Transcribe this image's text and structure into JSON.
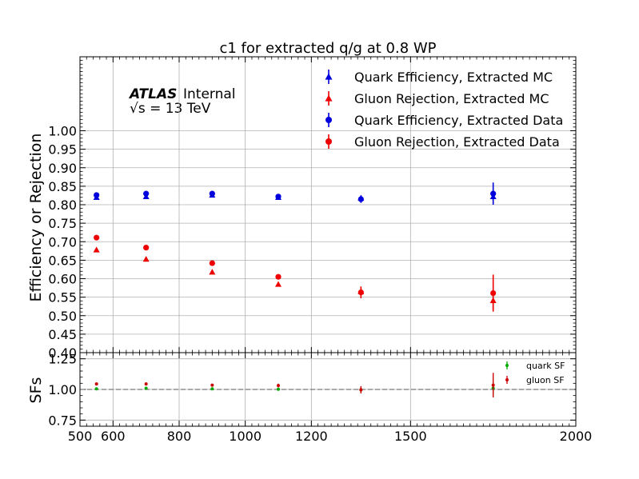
{
  "chart_data": {
    "type": "scatter",
    "title": "c1 for extracted q/g at 0.8 WP",
    "atlas_label": "ATLAS",
    "atlas_sub": "Internal",
    "energy_label": "√s = 13 TeV",
    "x": [
      550,
      700,
      900,
      1100,
      1350,
      1750
    ],
    "xlim": [
      500,
      2000
    ],
    "x_ticks": [
      500,
      600,
      800,
      1000,
      1200,
      1500,
      2000
    ],
    "top": {
      "ylabel": "Efficiency or Rejection",
      "ylim": [
        0.4,
        1.0
      ],
      "display_top": 1.2,
      "y_ticks": [
        0.4,
        0.45,
        0.5,
        0.55,
        0.6,
        0.65,
        0.7,
        0.75,
        0.8,
        0.85,
        0.9,
        0.95,
        1.0
      ],
      "legend_position": "top-right",
      "series": [
        {
          "name": "Quark Efficiency, Extracted MC",
          "marker": "triangle",
          "color": "#0000dd",
          "values": [
            0.82,
            0.822,
            0.826,
            0.82,
            0.818,
            0.822
          ],
          "errors": [
            0.004,
            0.004,
            0.004,
            0.004,
            0.006,
            0.01
          ]
        },
        {
          "name": "Gluon Rejection, Extracted MC",
          "marker": "triangle",
          "color": "#ee0000",
          "values": [
            0.678,
            0.653,
            0.618,
            0.585,
            0.565,
            0.541
          ],
          "errors": [
            0.003,
            0.003,
            0.003,
            0.005,
            0.01,
            0.025
          ]
        },
        {
          "name": "Quark Efficiency, Extracted Data",
          "marker": "circle",
          "color": "#0000dd",
          "values": [
            0.826,
            0.83,
            0.83,
            0.822,
            0.815,
            0.83
          ],
          "errors": [
            0.005,
            0.005,
            0.004,
            0.005,
            0.01,
            0.03
          ]
        },
        {
          "name": "Gluon Rejection, Extracted Data",
          "marker": "circle",
          "color": "#ee0000",
          "values": [
            0.711,
            0.684,
            0.642,
            0.605,
            0.563,
            0.561
          ],
          "errors": [
            0.003,
            0.003,
            0.004,
            0.007,
            0.016,
            0.05
          ]
        }
      ]
    },
    "bottom": {
      "ylabel": "SFs",
      "ylim": [
        0.7,
        1.3
      ],
      "y_ticks": [
        0.75,
        1.0,
        1.25
      ],
      "reference_line": 1.0,
      "legend_position": "top-right",
      "series": [
        {
          "name": "quark SF",
          "color": "#00aa00",
          "values": [
            1.005,
            1.01,
            1.005,
            1.002,
            0.997,
            1.01
          ],
          "errors": [
            0.01,
            0.01,
            0.01,
            0.01,
            0.02,
            0.05
          ]
        },
        {
          "name": "gluon SF",
          "color": "#cc0000",
          "values": [
            1.045,
            1.045,
            1.035,
            1.032,
            0.997,
            1.035
          ],
          "errors": [
            0.01,
            0.01,
            0.01,
            0.015,
            0.03,
            0.1
          ]
        }
      ]
    },
    "grid": true
  }
}
